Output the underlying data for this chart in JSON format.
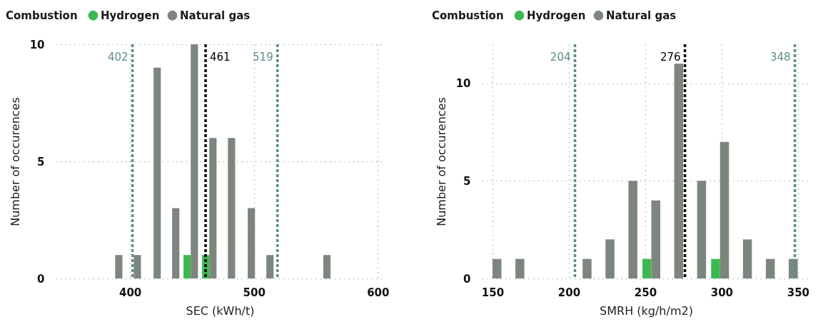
{
  "chart_data": [
    {
      "type": "bar",
      "xlabel": "SEC (kWh/t)",
      "ylabel": "Number of occurences",
      "legend_title": "Combustion",
      "legend": "top left",
      "grid": true,
      "x": [
        388,
        403,
        419,
        434,
        449,
        464,
        479,
        495,
        510,
        556
      ],
      "series": [
        {
          "name": "Hydrogen",
          "color": "#3cb853",
          "values": [
            null,
            null,
            null,
            null,
            1,
            1,
            null,
            null,
            null,
            null
          ]
        },
        {
          "name": "Natural gas",
          "color": "#7d867d",
          "values": [
            1,
            1,
            9,
            3,
            10,
            6,
            6,
            3,
            1,
            1
          ]
        }
      ],
      "xlim": [
        340,
        605
      ],
      "xticks": [
        400,
        500,
        600
      ],
      "ylim": [
        0,
        10
      ],
      "yticks": [
        0,
        5,
        10
      ],
      "ref_lines": [
        {
          "axis": "x",
          "value": 402,
          "label": "402",
          "color": "#5b8e8a",
          "line_style": "dashed"
        },
        {
          "axis": "x",
          "value": 461,
          "label": "461",
          "color": "#000000",
          "line_style": "dashed"
        },
        {
          "axis": "x",
          "value": 519,
          "label": "519",
          "color": "#5b8e8a",
          "line_style": "dashed"
        }
      ]
    },
    {
      "type": "bar",
      "xlabel": "SMRH (kg/h/m2)",
      "ylabel": "Number of occurences",
      "legend_title": "Combustion",
      "legend": "top left",
      "grid": true,
      "x": [
        150,
        165,
        209,
        224,
        239,
        254,
        269,
        284,
        299,
        314,
        329,
        344
      ],
      "series": [
        {
          "name": "Hydrogen",
          "color": "#3cb853",
          "values": [
            null,
            null,
            null,
            null,
            null,
            1,
            null,
            null,
            1,
            null,
            null,
            null
          ]
        },
        {
          "name": "Natural gas",
          "color": "#7d867d",
          "values": [
            1,
            1,
            1,
            2,
            5,
            4,
            11,
            5,
            7,
            2,
            1,
            1
          ]
        }
      ],
      "xlim": [
        143,
        358
      ],
      "xticks": [
        150,
        200,
        250,
        300,
        350
      ],
      "ylim": [
        0,
        12
      ],
      "yticks": [
        0,
        5,
        10
      ],
      "ref_lines": [
        {
          "axis": "x",
          "value": 204,
          "label": "204",
          "color": "#5b8e8a",
          "line_style": "dashed"
        },
        {
          "axis": "x",
          "value": 276,
          "label": "276",
          "color": "#000000",
          "line_style": "dashed"
        },
        {
          "axis": "x",
          "value": 348,
          "label": "348",
          "color": "#5b8e8a",
          "line_style": "dashed"
        }
      ]
    }
  ]
}
